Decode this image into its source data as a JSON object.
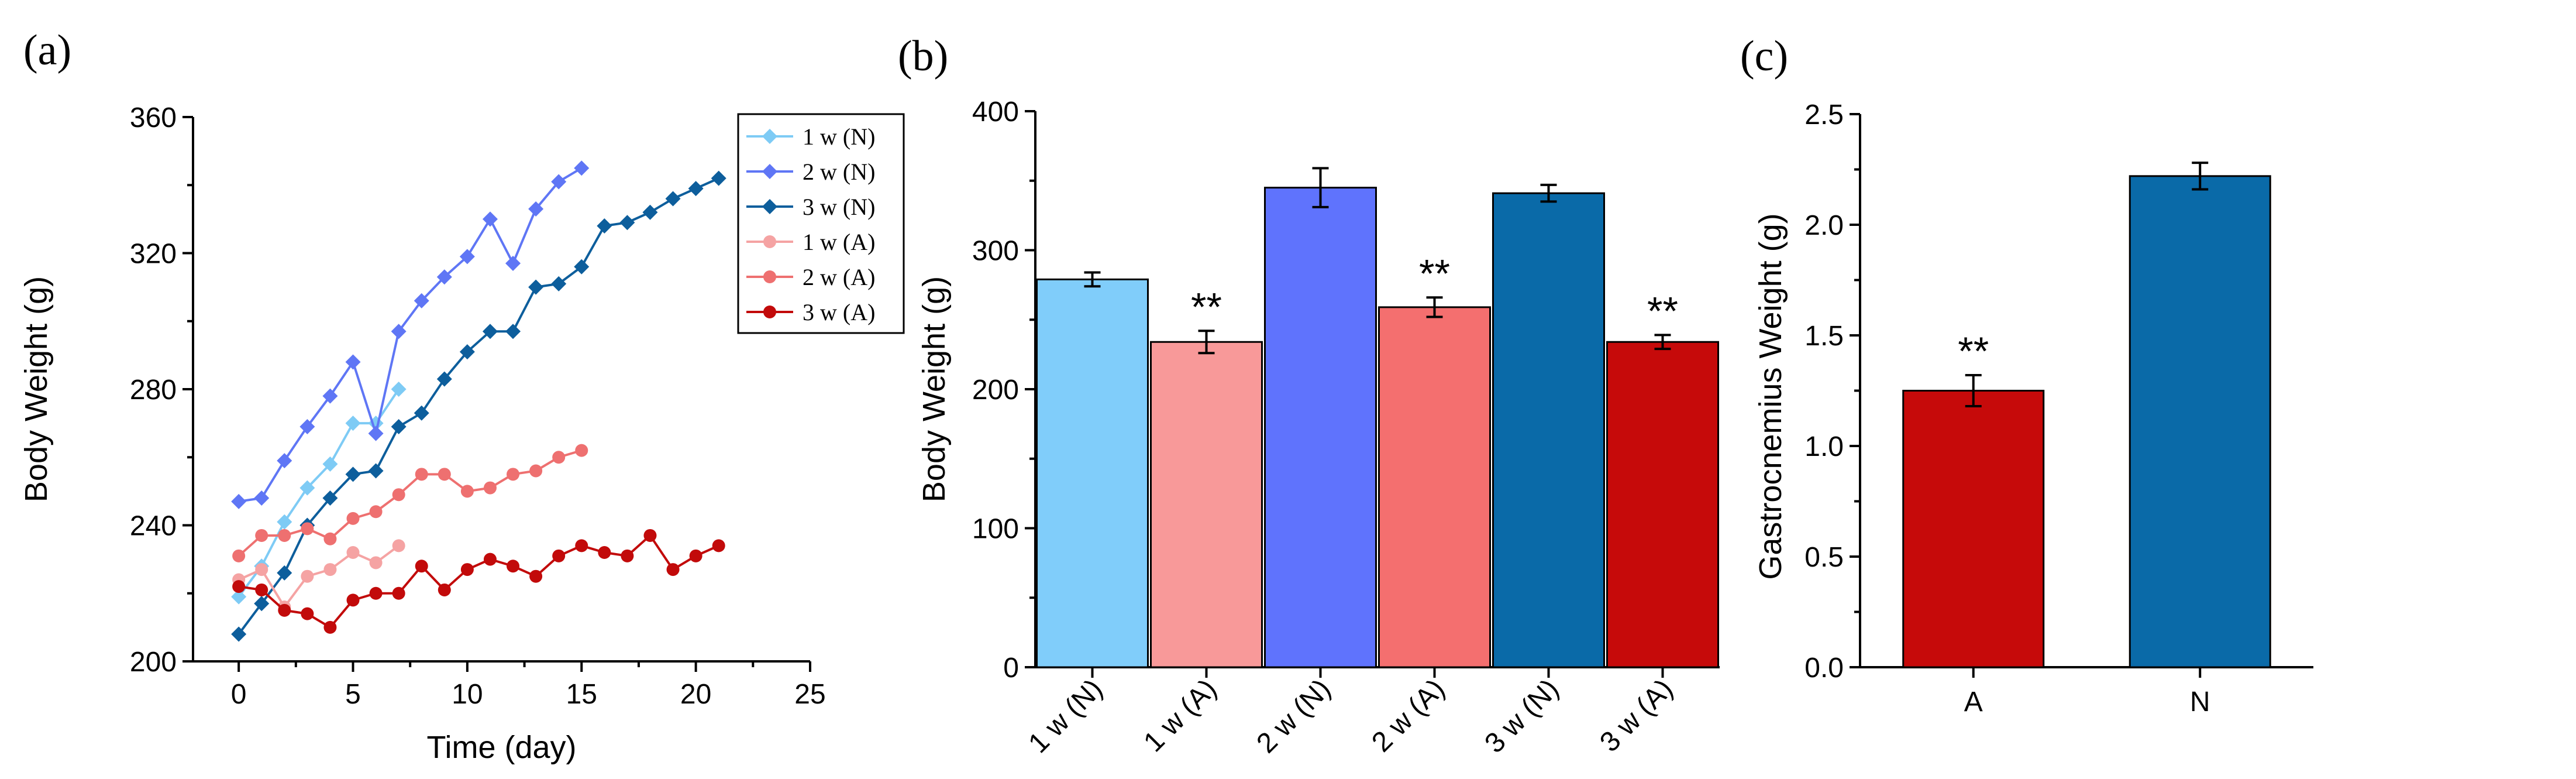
{
  "chart_data": [
    {
      "panel_label": "(a)",
      "type": "line",
      "xlabel": "Time (day)",
      "ylabel": "Body Weight (g)",
      "xlim": [
        -2,
        25
      ],
      "ylim": [
        200,
        360
      ],
      "xticks": [
        0,
        5,
        10,
        15,
        20,
        25
      ],
      "yticks": [
        200,
        240,
        280,
        320,
        360
      ],
      "series": [
        {
          "name": "1 w (N)",
          "color": "#7ecbf5",
          "marker": "diamond",
          "x": [
            0,
            1,
            2,
            3,
            4,
            5,
            6,
            7
          ],
          "y": [
            219,
            228,
            241,
            251,
            258,
            270,
            270,
            280
          ]
        },
        {
          "name": "2 w (N)",
          "color": "#5f76f5",
          "marker": "diamond",
          "x": [
            0,
            1,
            2,
            3,
            4,
            5,
            6,
            7,
            8,
            9,
            10,
            11,
            12,
            13,
            14,
            15
          ],
          "y": [
            247,
            248,
            259,
            269,
            278,
            288,
            267,
            297,
            306,
            313,
            319,
            330,
            317,
            333,
            341,
            345
          ]
        },
        {
          "name": "3 w (N)",
          "color": "#0d5e9c",
          "marker": "diamond",
          "x": [
            0,
            1,
            2,
            3,
            4,
            5,
            6,
            7,
            8,
            9,
            10,
            11,
            12,
            13,
            14,
            15,
            16,
            17,
            18,
            19,
            20,
            21
          ],
          "y": [
            208,
            217,
            226,
            240,
            248,
            255,
            256,
            269,
            273,
            283,
            291,
            297,
            297,
            310,
            311,
            316,
            328,
            329,
            332,
            336,
            339,
            342
          ]
        },
        {
          "name": "1 w (A)",
          "color": "#f5a3a3",
          "marker": "circle",
          "x": [
            0,
            1,
            2,
            3,
            4,
            5,
            6,
            7
          ],
          "y": [
            224,
            227,
            216,
            225,
            227,
            232,
            229,
            234
          ]
        },
        {
          "name": "2 w (A)",
          "color": "#ee7070",
          "marker": "circle",
          "x": [
            0,
            1,
            2,
            3,
            4,
            5,
            6,
            7,
            8,
            9,
            10,
            11,
            12,
            13,
            14,
            15
          ],
          "y": [
            231,
            237,
            237,
            239,
            236,
            242,
            244,
            249,
            255,
            255,
            250,
            251,
            255,
            256,
            260,
            262
          ]
        },
        {
          "name": "3 w (A)",
          "color": "#c20a0a",
          "marker": "circle",
          "x": [
            0,
            1,
            2,
            3,
            4,
            5,
            6,
            7,
            8,
            9,
            10,
            11,
            12,
            13,
            14,
            15,
            16,
            17,
            18,
            19,
            20,
            21
          ],
          "y": [
            222,
            221,
            215,
            214,
            210,
            218,
            220,
            220,
            228,
            221,
            227,
            230,
            228,
            225,
            231,
            234,
            232,
            231,
            237,
            227,
            231,
            234
          ]
        }
      ]
    },
    {
      "panel_label": "(b)",
      "type": "bar",
      "xlabel": "",
      "ylabel": "Body Weight (g)",
      "ylim": [
        0,
        400
      ],
      "yticks": [
        0,
        100,
        200,
        300,
        400
      ],
      "categories": [
        "1 w (N)",
        "1 w (A)",
        "2 w (N)",
        "2 w (A)",
        "3 w (N)",
        "3 w (A)"
      ],
      "values": [
        279,
        234,
        345,
        259,
        341,
        234
      ],
      "errors": [
        5,
        8,
        14,
        7,
        6,
        5
      ],
      "colors": [
        "#80cdfa",
        "#f89999",
        "#5f73fd",
        "#f46f6f",
        "#0a6aa8",
        "#c60a0a"
      ],
      "significance": [
        "",
        "**",
        "",
        "**",
        "",
        "**"
      ]
    },
    {
      "panel_label": "(c)",
      "type": "bar",
      "xlabel": "",
      "ylabel": "Gastrocnemius Weight (g)",
      "ylim": [
        0,
        2.5
      ],
      "yticks": [
        "0.0",
        "0.5",
        "1.0",
        "1.5",
        "2.0",
        "2.5"
      ],
      "categories": [
        "A",
        "N"
      ],
      "values": [
        1.25,
        2.22
      ],
      "errors": [
        0.07,
        0.06
      ],
      "colors": [
        "#c60a0a",
        "#0a6aa8"
      ],
      "significance": [
        "**",
        ""
      ]
    }
  ]
}
